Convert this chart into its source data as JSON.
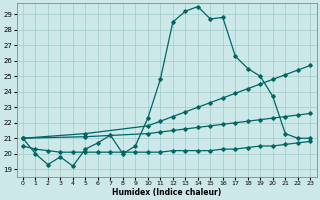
{
  "xlabel": "Humidex (Indice chaleur)",
  "bg_color": "#cce8e8",
  "grid_color": "#aacfcf",
  "line_color": "#006666",
  "xlim": [
    -0.5,
    23.5
  ],
  "ylim": [
    18.5,
    29.7
  ],
  "yticks": [
    19,
    20,
    21,
    22,
    23,
    24,
    25,
    26,
    27,
    28,
    29
  ],
  "xticks": [
    0,
    1,
    2,
    3,
    4,
    5,
    6,
    7,
    8,
    9,
    10,
    11,
    12,
    13,
    14,
    15,
    16,
    17,
    18,
    19,
    20,
    21,
    22,
    23
  ],
  "x_main": [
    0,
    1,
    2,
    3,
    4,
    5,
    6,
    7,
    8,
    9,
    10,
    11,
    12,
    13,
    14,
    15,
    16,
    17,
    18,
    19,
    20,
    21,
    22,
    23
  ],
  "y_main": [
    21.0,
    20.0,
    19.3,
    19.8,
    19.2,
    20.3,
    20.7,
    21.2,
    20.0,
    20.5,
    22.3,
    24.8,
    28.5,
    29.2,
    29.5,
    28.7,
    28.8,
    26.3,
    25.5,
    25.0,
    23.7,
    21.3,
    21.0,
    21.0
  ],
  "x_upper": [
    0,
    5,
    10,
    11,
    12,
    13,
    14,
    15,
    16,
    17,
    18,
    19,
    20,
    21,
    22,
    23
  ],
  "y_upper": [
    21.0,
    21.3,
    21.8,
    22.1,
    22.4,
    22.7,
    23.0,
    23.3,
    23.6,
    23.9,
    24.2,
    24.5,
    24.8,
    25.1,
    25.4,
    25.7
  ],
  "x_mid": [
    0,
    5,
    10,
    11,
    12,
    13,
    14,
    15,
    16,
    17,
    18,
    19,
    20,
    21,
    22,
    23
  ],
  "y_mid": [
    21.0,
    21.1,
    21.3,
    21.4,
    21.5,
    21.6,
    21.7,
    21.8,
    21.9,
    22.0,
    22.1,
    22.2,
    22.3,
    22.4,
    22.5,
    22.6
  ],
  "x_flat": [
    0,
    1,
    2,
    3,
    4,
    5,
    6,
    7,
    8,
    9,
    10,
    11,
    12,
    13,
    14,
    15,
    16,
    17,
    18,
    19,
    20,
    21,
    22,
    23
  ],
  "y_flat": [
    20.5,
    20.3,
    20.2,
    20.1,
    20.1,
    20.1,
    20.1,
    20.1,
    20.1,
    20.1,
    20.1,
    20.1,
    20.2,
    20.2,
    20.2,
    20.2,
    20.3,
    20.3,
    20.4,
    20.5,
    20.5,
    20.6,
    20.7,
    20.8
  ]
}
